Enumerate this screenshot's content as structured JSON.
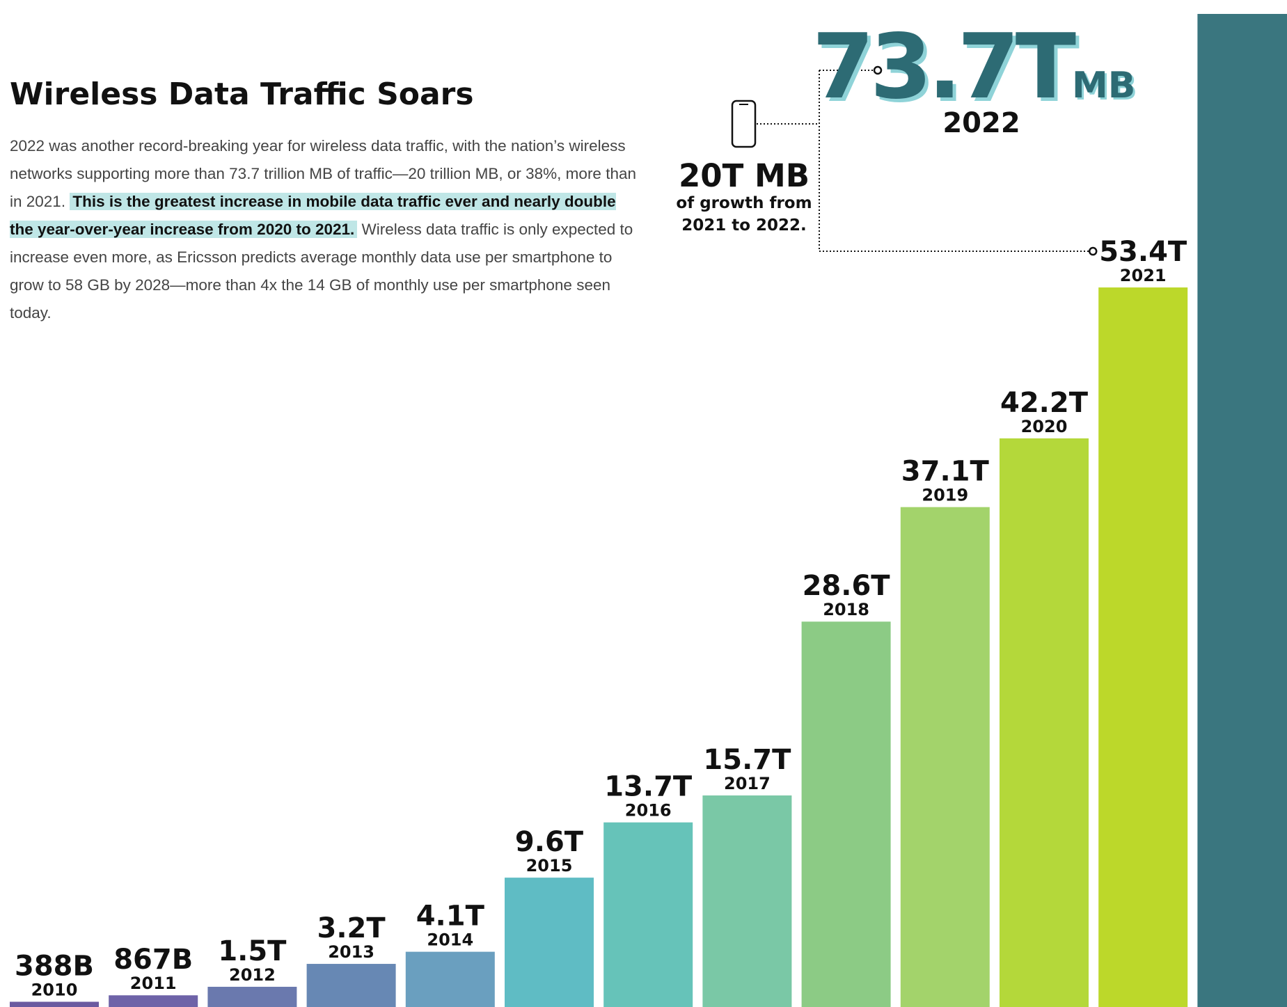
{
  "chart_data": {
    "type": "bar",
    "title": "Wireless Data Traffic Soars",
    "paragraph": {
      "before": "2022 was another record-breaking year for wireless data traffic, with the nation’s wireless networks supporting more than 73.7 trillion MB of traffic—20 trillion MB, or 38%, more than in 2021.",
      "highlight": "This is the greatest increase in mobile data traffic ever and nearly double the year-over-year increase from 2020 to 2021.",
      "after": "Wireless data traffic is only expected to increase even more, as Ericsson predicts average monthly data use per smartphone to grow to 58 GB by 2028—more than 4x the 14 GB of monthly use per smartphone seen today."
    },
    "categories": [
      "2010",
      "2011",
      "2012",
      "2013",
      "2014",
      "2015",
      "2016",
      "2017",
      "2018",
      "2019",
      "2020",
      "2021",
      "2022"
    ],
    "values": [
      0.388,
      0.867,
      1.5,
      3.2,
      4.1,
      9.6,
      13.7,
      15.7,
      28.6,
      37.1,
      42.2,
      53.4,
      73.7
    ],
    "value_labels": [
      "388B",
      "867B",
      "1.5T",
      "3.2T",
      "4.1T",
      "9.6T",
      "13.7T",
      "15.7T",
      "28.6T",
      "37.1T",
      "42.2T",
      "53.4T",
      "73.7T"
    ],
    "colors": [
      "#6a5aa0",
      "#6e63a8",
      "#6a79ae",
      "#6788b4",
      "#6a9fbf",
      "#5fbcc4",
      "#66c3b9",
      "#7ac8a6",
      "#8ccb85",
      "#a3d36b",
      "#b4d83a",
      "#bcd82a",
      "#2f6f78"
    ],
    "annotation": {
      "unit": "MB",
      "growth": "20T MB",
      "growth_note_1": "of growth from",
      "growth_note_2": "2021 to 2022."
    }
  }
}
